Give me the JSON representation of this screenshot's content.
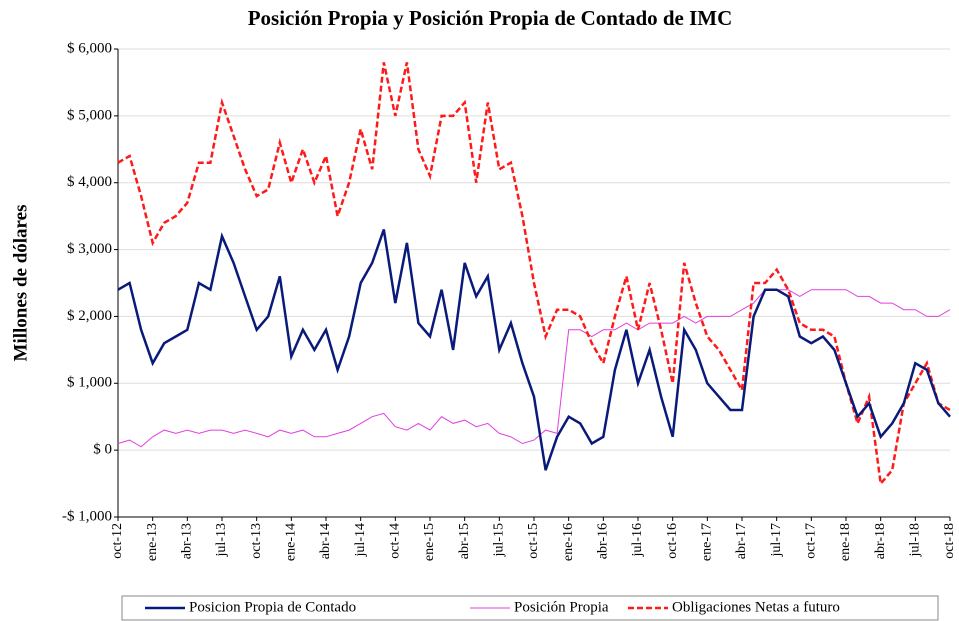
{
  "chart_data": {
    "type": "line",
    "title": "Posición Propia y Posición Propia de Contado de IMC",
    "ylabel": "Millones de dólares",
    "categories": [
      "oct-12",
      null,
      null,
      "ene-13",
      null,
      null,
      "abr-13",
      null,
      null,
      "jul-13",
      null,
      null,
      "oct-13",
      null,
      null,
      "ene-14",
      null,
      null,
      "abr-14",
      null,
      null,
      "jul-14",
      null,
      null,
      "oct-14",
      null,
      null,
      "ene-15",
      null,
      null,
      "abr-15",
      null,
      null,
      "jul-15",
      null,
      null,
      "oct-15",
      null,
      null,
      "ene-16",
      null,
      null,
      "abr-16",
      null,
      null,
      "jul-16",
      null,
      null,
      "oct-16",
      null,
      null,
      "ene-17",
      null,
      null,
      "abr-17",
      null,
      null,
      "jul-17",
      null,
      null,
      "oct-17",
      null,
      null,
      "ene-18",
      null,
      null,
      "abr-18",
      null,
      null,
      "jul-18",
      null,
      null,
      "oct-18"
    ],
    "series": [
      {
        "name": "Posicion Propia de Contado",
        "color": "#0a1a7a",
        "dash": false,
        "width": 2.5,
        "values": [
          2400,
          2500,
          1800,
          1300,
          1600,
          1700,
          1800,
          2500,
          2400,
          3200,
          2800,
          2300,
          1800,
          2000,
          2600,
          1400,
          1800,
          1500,
          1800,
          1200,
          1700,
          2500,
          2800,
          3300,
          2200,
          3100,
          1900,
          1700,
          2400,
          1500,
          2800,
          2300,
          2600,
          1500,
          1900,
          1300,
          800,
          -300,
          200,
          500,
          400,
          100,
          200,
          1200,
          1800,
          1000,
          1500,
          800,
          200,
          1800,
          1500,
          1000,
          800,
          600,
          600,
          2000,
          2400,
          2400,
          2300,
          1700,
          1600,
          1700,
          1500,
          1000,
          500,
          700,
          200,
          400,
          700,
          1300,
          1200,
          700,
          500
        ]
      },
      {
        "name": "Posición Propia",
        "color": "#e040e0",
        "dash": false,
        "width": 1,
        "values": [
          100,
          150,
          50,
          200,
          300,
          250,
          300,
          250,
          300,
          300,
          250,
          300,
          250,
          200,
          300,
          250,
          300,
          200,
          200,
          250,
          300,
          400,
          500,
          550,
          350,
          300,
          400,
          300,
          500,
          400,
          450,
          350,
          400,
          250,
          200,
          100,
          150,
          300,
          250,
          1800,
          1800,
          1700,
          1800,
          1800,
          1900,
          1800,
          1900,
          1900,
          1900,
          2000,
          1900,
          2000,
          2000,
          2000,
          2100,
          2200,
          2400,
          2400,
          2400,
          2300,
          2400,
          2400,
          2400,
          2400,
          2300,
          2300,
          2200,
          2200,
          2100,
          2100,
          2000,
          2000,
          2100
        ]
      },
      {
        "name": "Obligaciones Netas a futuro",
        "color": "#ff1a1a",
        "dash": true,
        "width": 2.5,
        "values": [
          4300,
          4400,
          3800,
          3100,
          3400,
          3500,
          3700,
          4300,
          4300,
          5200,
          4700,
          4200,
          3800,
          3900,
          4600,
          4000,
          4500,
          4000,
          4400,
          3500,
          4000,
          4800,
          4200,
          5800,
          5000,
          5800,
          4500,
          4100,
          5000,
          5000,
          5200,
          4000,
          5200,
          4200,
          4300,
          3500,
          2500,
          1700,
          2100,
          2100,
          2000,
          1600,
          1300,
          2000,
          2600,
          1800,
          2500,
          1800,
          1000,
          2800,
          2200,
          1700,
          1500,
          1200,
          900,
          2500,
          2500,
          2700,
          2400,
          1900,
          1800,
          1800,
          1700,
          1000,
          400,
          800,
          -500,
          -300,
          700,
          1000,
          1300,
          700,
          600
        ]
      }
    ],
    "ylim": [
      -1000,
      6000
    ],
    "yticks": [
      {
        "value": -1000,
        "label": "-$ 1,000"
      },
      {
        "value": 0,
        "label": "$ 0"
      },
      {
        "value": 1000,
        "label": "$ 1,000"
      },
      {
        "value": 2000,
        "label": "$ 2,000"
      },
      {
        "value": 3000,
        "label": "$ 3,000"
      },
      {
        "value": 4000,
        "label": "$ 4,000"
      },
      {
        "value": 5000,
        "label": "$ 5,000"
      },
      {
        "value": 6000,
        "label": "$ 6,000"
      }
    ],
    "grid": true,
    "legend": "bottom"
  }
}
